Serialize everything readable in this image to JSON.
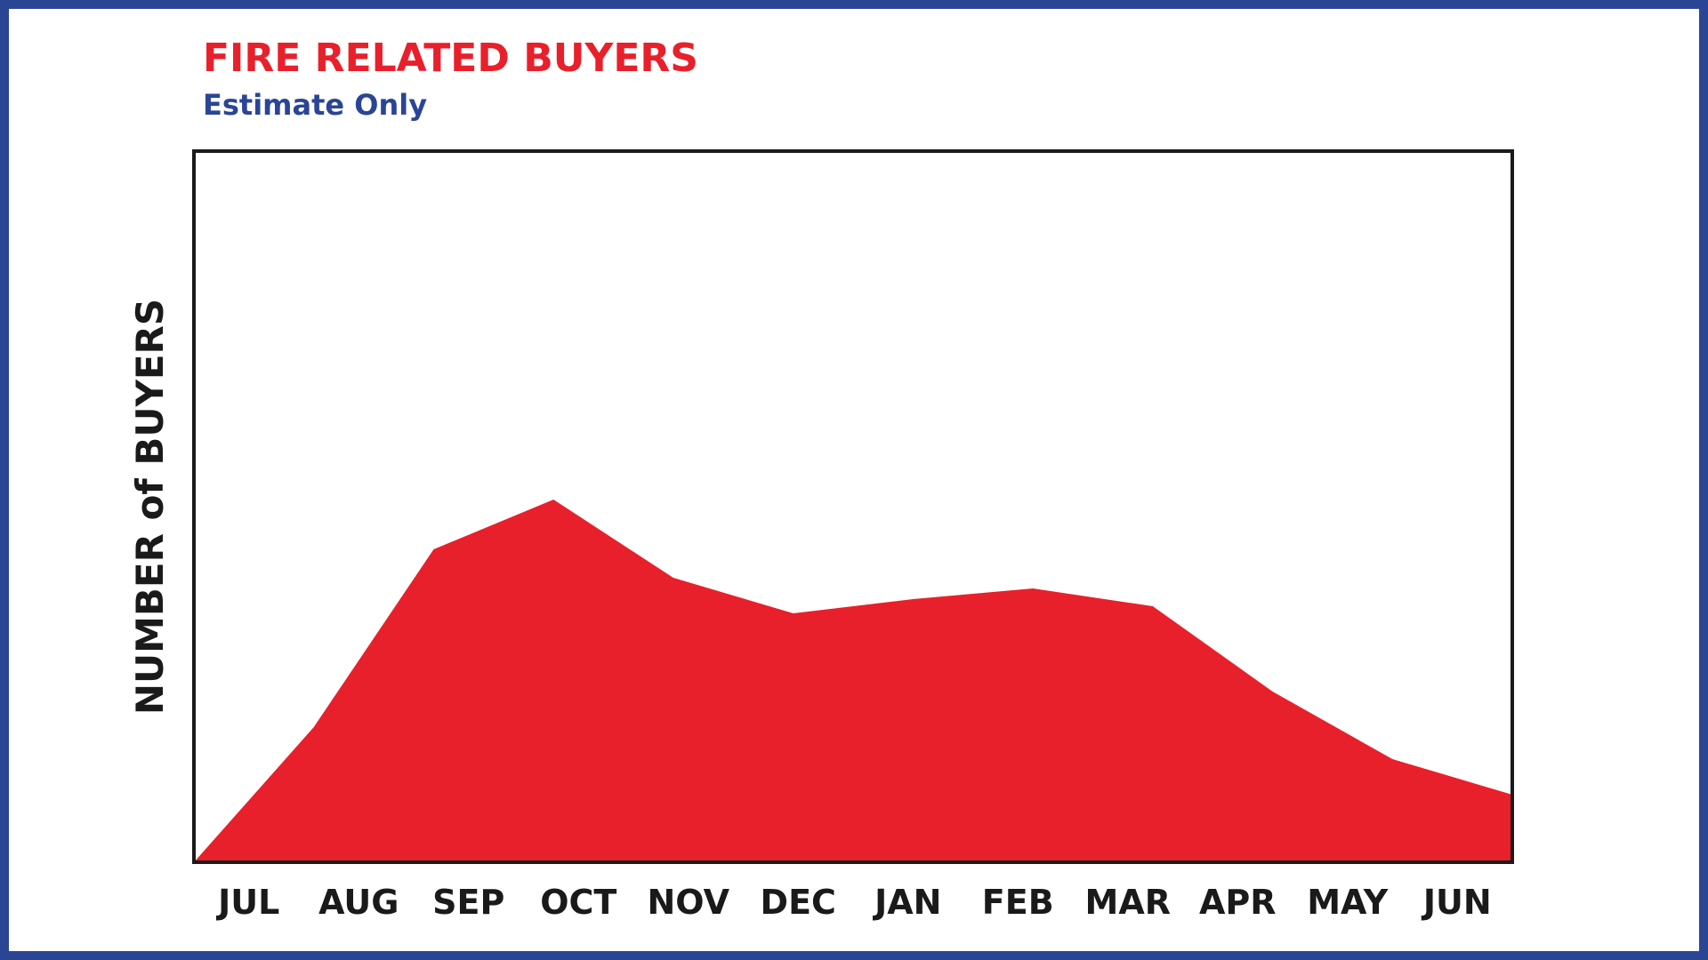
{
  "chart_data": {
    "type": "area",
    "title": "FIRE RELATED BUYERS",
    "subtitle": "Estimate Only",
    "xlabel": "",
    "ylabel": "NUMBER of BUYERS",
    "categories": [
      "JUL",
      "AUG",
      "SEP",
      "OCT",
      "NOV",
      "DEC",
      "JAN",
      "FEB",
      "MAR",
      "APR",
      "MAY",
      "JUN"
    ],
    "values": [
      0,
      19,
      44,
      51,
      40,
      35,
      37,
      38.5,
      36,
      24,
      14.5,
      9.5
    ],
    "ylim": [
      0,
      100
    ],
    "grid": false,
    "legend": "none"
  },
  "colors": {
    "border": "#2b4595",
    "title": "#e8202b",
    "subtitle": "#2b4595",
    "area_fill": "#e8202b",
    "plot_frame": "#1a1a1a"
  }
}
